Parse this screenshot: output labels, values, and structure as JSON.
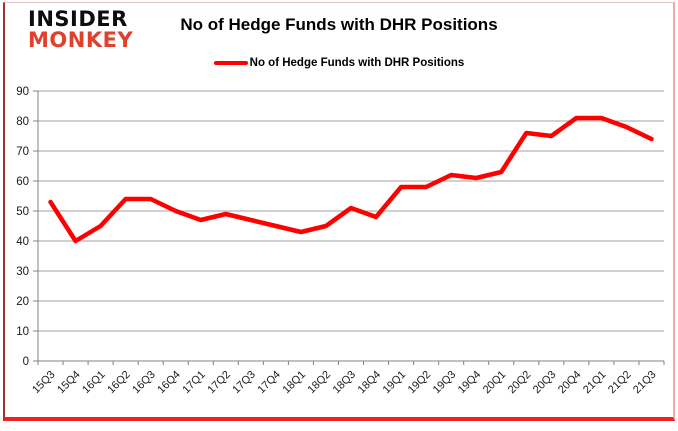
{
  "brand": {
    "line1": "INSIDER",
    "line2": "MONKEY"
  },
  "header": {
    "title": "No of Hedge Funds with DHR Positions"
  },
  "legend": {
    "label": "No of Hedge Funds with DHR Positions"
  },
  "colors": {
    "series": "#fe0000",
    "grid": "#a0a0a0",
    "axis": "#808080",
    "tick_text": "#1a1a1a",
    "brand_red": "#e0402e",
    "frame_bottom_bar": "#ee2222"
  },
  "chart_data": {
    "type": "line",
    "title": "No of Hedge Funds with DHR Positions",
    "categories": [
      "15Q3",
      "15Q4",
      "16Q1",
      "16Q2",
      "16Q3",
      "16Q4",
      "17Q1",
      "17Q2",
      "17Q3",
      "17Q4",
      "18Q1",
      "18Q2",
      "18Q3",
      "18Q4",
      "19Q1",
      "19Q2",
      "19Q3",
      "19Q4",
      "20Q1",
      "20Q2",
      "20Q3",
      "20Q4",
      "21Q1",
      "21Q2",
      "21Q3"
    ],
    "series": [
      {
        "name": "No of Hedge Funds with DHR Positions",
        "values": [
          53,
          40,
          45,
          54,
          54,
          50,
          47,
          49,
          47,
          45,
          43,
          45,
          51,
          48,
          58,
          58,
          62,
          61,
          63,
          76,
          75,
          81,
          81,
          78,
          74
        ]
      }
    ],
    "xlabel": "",
    "ylabel": "",
    "ylim": [
      0,
      90
    ],
    "yticks": [
      0,
      10,
      20,
      30,
      40,
      50,
      60,
      70,
      80,
      90
    ],
    "grid": true,
    "legend_position": "top",
    "x_label_rotation_deg": -45
  }
}
